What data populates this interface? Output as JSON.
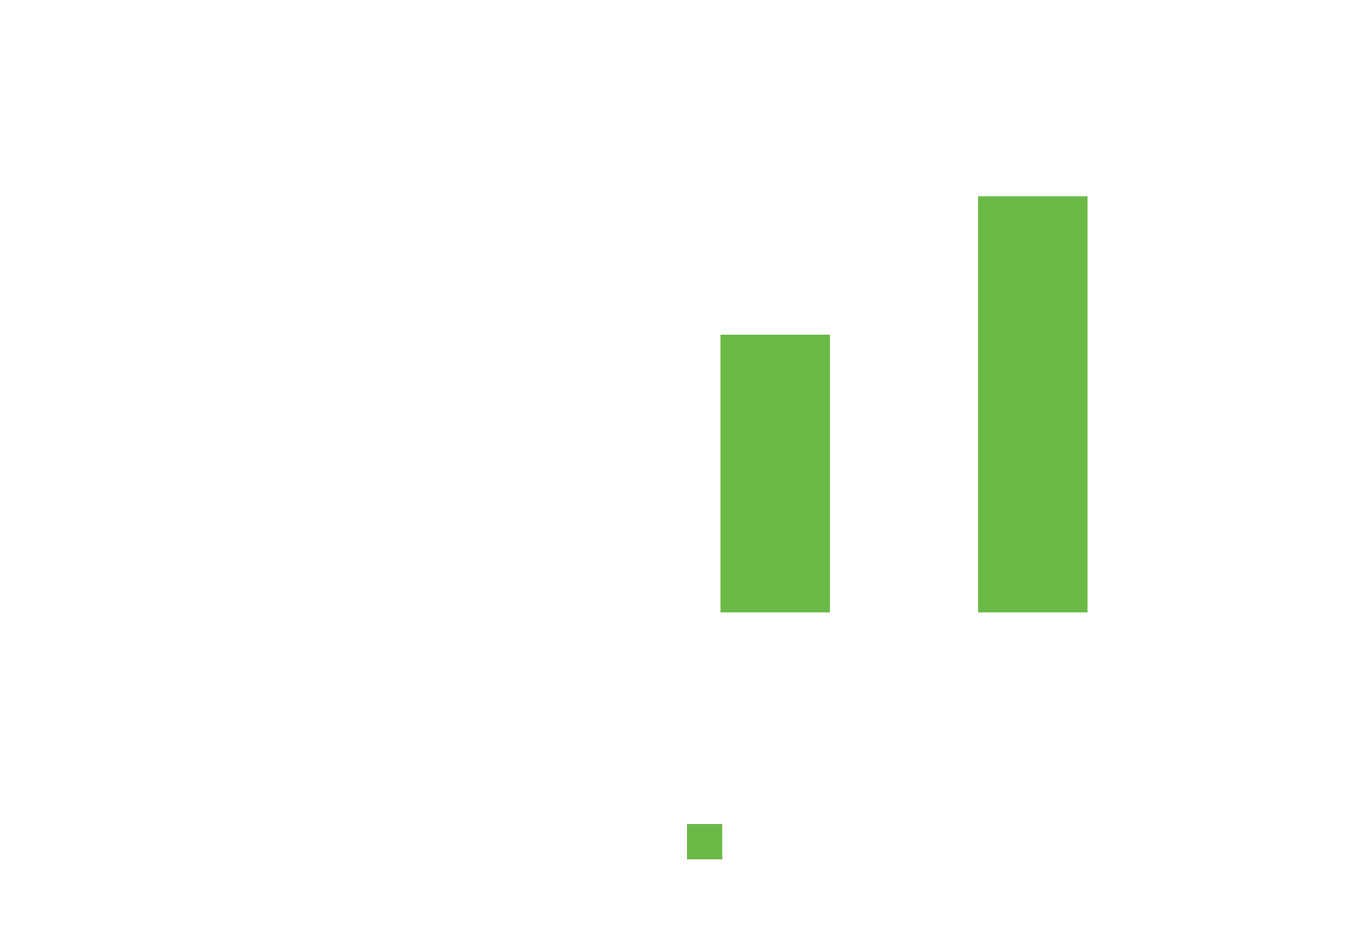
{
  "chart_data": {
    "type": "bar",
    "categories": [
      "",
      "",
      ""
    ],
    "series": [
      {
        "values": [
          0,
          307,
          460
        ],
        "color": "#6bb947"
      }
    ],
    "title": "",
    "xlabel": "",
    "ylabel": "",
    "ylim": [
      0,
      600
    ],
    "grid": false,
    "legend_position": "bottom"
  },
  "legend": {
    "items": [
      {
        "label": "",
        "color": "#6bb947"
      }
    ]
  }
}
